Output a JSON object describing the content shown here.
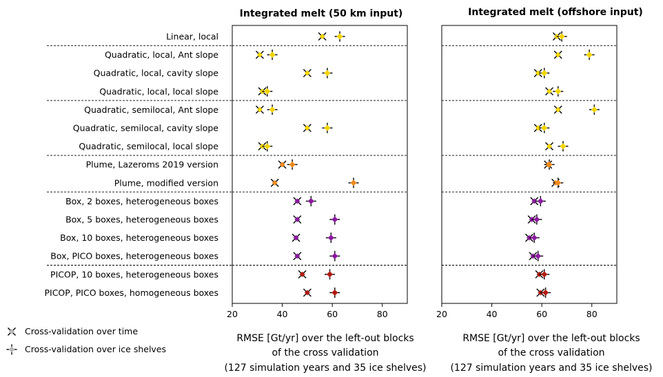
{
  "chart_data": {
    "type": "scatter",
    "categories": [
      "Linear, local",
      "Quadratic, local, Ant slope",
      "Quadratic, local, cavity slope",
      "Quadratic, local, local slope",
      "Quadratic, semilocal, Ant slope",
      "Quadratic, semilocal, cavity slope",
      "Quadratic, semilocal, local slope",
      "Plume, Lazeroms 2019 version",
      "Plume, modified version",
      "Box, 2 boxes, heterogeneous boxes",
      "Box, 5 boxes, heterogeneous boxes",
      "Box, 10 boxes, heterogeneous boxes",
      "Box, PICO boxes, heterogeneous boxes",
      "PICOP, 10 boxes, heterogeneous boxes",
      "PICOP, PICO boxes, homogeneous boxes"
    ],
    "group_separators_after": [
      0,
      3,
      6,
      8,
      12
    ],
    "point_colors": [
      "#f2d400",
      "#f2d400",
      "#f2d400",
      "#f2d400",
      "#f2d400",
      "#f2d400",
      "#f2d400",
      "#f08a1c",
      "#f08a1c",
      "#8c1aa0",
      "#8c1aa0",
      "#8c1aa0",
      "#8c1aa0",
      "#b01c10",
      "#b01c10"
    ],
    "legend": {
      "position": "bottom-left",
      "entries": [
        "Cross-validation over time",
        "Cross-validation over ice shelves"
      ]
    },
    "panels": [
      {
        "title": "Integrated melt (50 km input)",
        "xlabel_lines": [
          "RMSE [Gt/yr] over the left-out blocks",
          "of the cross validation",
          "(127 simulation years and 35 ice shelves)"
        ],
        "xlim": [
          20,
          90
        ],
        "xticks": [
          "20",
          "40",
          "60",
          "80"
        ],
        "series": [
          {
            "name": "Cross-validation over time",
            "values": [
              56,
              31,
              50,
              32,
              31,
              50,
              32,
              40,
              37,
              46,
              46,
              45.5,
              46,
              48,
              50
            ]
          },
          {
            "name": "Cross-validation over ice shelves",
            "values": [
              63,
              36,
              58,
              34,
              36,
              58,
              34,
              44,
              68.5,
              51.5,
              61,
              59.5,
              61,
              59,
              61
            ]
          }
        ]
      },
      {
        "title": "Integrated melt (offshore input)",
        "xlabel_lines": [
          "RMSE [Gt/yr] over the left-out blocks",
          "of the cross validation",
          "(127 simulation years and 35 ice shelves)"
        ],
        "xlim": [
          20,
          90
        ],
        "xticks": [
          "20",
          "40",
          "60",
          "80"
        ],
        "series": [
          {
            "name": "Cross-validation over time",
            "values": [
              66,
              66.5,
              58.5,
              63,
              66.5,
              58.5,
              63,
              62.5,
              65.5,
              57,
              56,
              55,
              56.5,
              59,
              59.5
            ]
          },
          {
            "name": "Cross-validation over ice shelves",
            "values": [
              68,
              79,
              61,
              66.5,
              81,
              61,
              68.5,
              63,
              66.5,
              59.5,
              58,
              57,
              58.5,
              61,
              61.5
            ]
          }
        ]
      }
    ]
  }
}
